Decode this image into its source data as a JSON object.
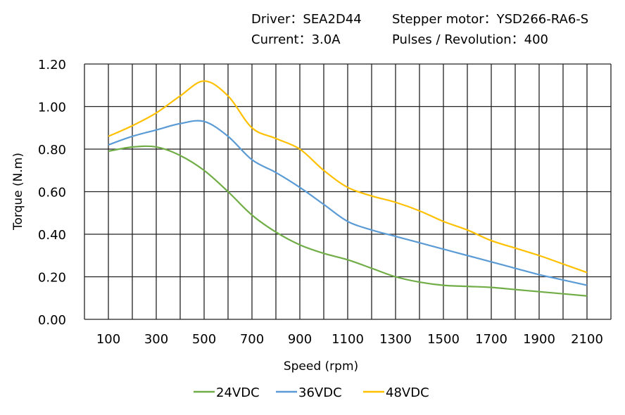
{
  "header": {
    "driver": "Driver：SEA2D44",
    "motor": "Stepper  motor：YSD266-RA6-S",
    "current": "Current：3.0A",
    "pulses": "Pulses / Revolution：400"
  },
  "chart_data": {
    "type": "line",
    "title": "",
    "xlabel": "Speed  (rpm)",
    "ylabel": "Torque (N.m)",
    "xlim": [
      0,
      2200
    ],
    "ylim": [
      0,
      1.2
    ],
    "grid": true,
    "legend_position": "bottom",
    "x_ticks": [
      "100",
      "300",
      "500",
      "700",
      "900",
      "1100",
      "1300",
      "1500",
      "1700",
      "1900",
      "2100"
    ],
    "y_ticks": [
      "0.00",
      "0.20",
      "0.40",
      "0.60",
      "0.80",
      "1.00",
      "1.20"
    ],
    "x": [
      100,
      200,
      300,
      400,
      500,
      600,
      700,
      800,
      900,
      1000,
      1100,
      1200,
      1300,
      1400,
      1500,
      1600,
      1700,
      1800,
      1900,
      2000,
      2100
    ],
    "series": [
      {
        "name": "24VDC",
        "color": "#70ad47",
        "values": [
          0.79,
          0.81,
          0.81,
          0.77,
          0.7,
          0.6,
          0.49,
          0.41,
          0.35,
          0.31,
          0.28,
          0.24,
          0.2,
          0.175,
          0.16,
          0.155,
          0.15,
          0.14,
          0.13,
          0.12,
          0.11
        ]
      },
      {
        "name": "36VDC",
        "color": "#5b9bd5",
        "values": [
          0.82,
          0.86,
          0.89,
          0.92,
          0.93,
          0.86,
          0.75,
          0.69,
          0.62,
          0.54,
          0.46,
          0.42,
          0.39,
          0.36,
          0.33,
          0.3,
          0.27,
          0.24,
          0.21,
          0.185,
          0.16
        ]
      },
      {
        "name": "48VDC",
        "color": "#ffc000",
        "values": [
          0.86,
          0.91,
          0.97,
          1.05,
          1.12,
          1.05,
          0.9,
          0.85,
          0.8,
          0.7,
          0.62,
          0.58,
          0.55,
          0.51,
          0.46,
          0.42,
          0.37,
          0.335,
          0.3,
          0.26,
          0.22
        ]
      }
    ]
  }
}
